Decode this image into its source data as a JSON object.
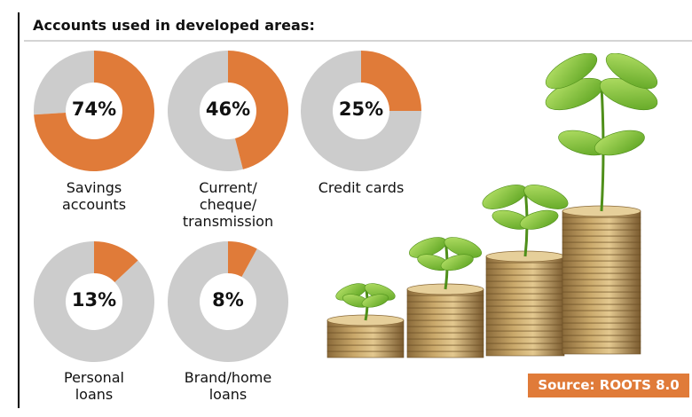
{
  "header": {
    "title": "Accounts used in developed areas:"
  },
  "colors": {
    "accent": "#e07b39",
    "remainder": "#cccccc",
    "hole": "#ffffff"
  },
  "chart_data": {
    "type": "pie",
    "title": "Accounts used in developed areas:",
    "unit": "%",
    "items": [
      {
        "label": "Savings accounts",
        "caption_lines": [
          "Savings",
          "accounts"
        ],
        "value": 74,
        "display": "74%"
      },
      {
        "label": "Current/ cheque/ transmission",
        "caption_lines": [
          "Current/",
          "cheque/",
          "transmission"
        ],
        "value": 46,
        "display": "46%"
      },
      {
        "label": "Credit cards",
        "caption_lines": [
          "Credit cards"
        ],
        "value": 25,
        "display": "25%"
      },
      {
        "label": "Personal loans",
        "caption_lines": [
          "Personal",
          "loans"
        ],
        "value": 13,
        "display": "13%"
      },
      {
        "label": "Brand/home loans",
        "caption_lines": [
          "Brand/home",
          "loans"
        ],
        "value": 8,
        "display": "8%"
      }
    ]
  },
  "illustration": {
    "icon": "coin-stacks-with-seedlings-illustration"
  },
  "source": {
    "label": "Source: ROOTS 8.0"
  }
}
